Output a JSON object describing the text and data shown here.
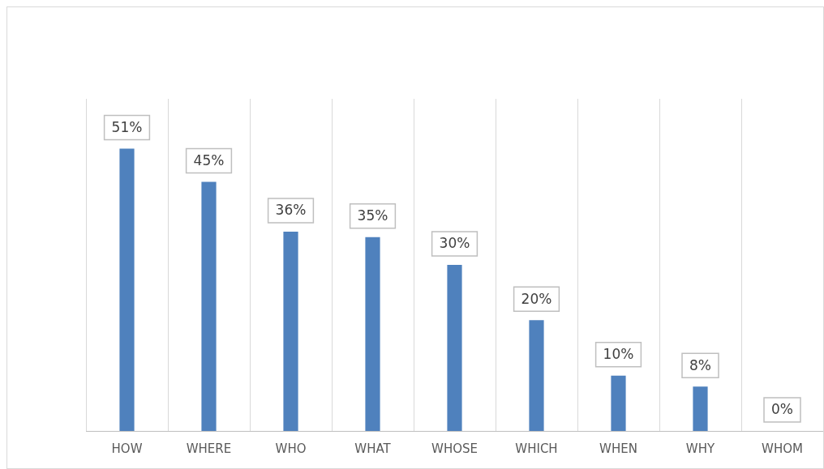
{
  "chart_data": {
    "type": "bar",
    "categories": [
      "HOW",
      "WHERE",
      "WHO",
      "WHAT",
      "WHOSE",
      "WHICH",
      "WHEN",
      "WHY",
      "WHOM"
    ],
    "values": [
      51,
      45,
      36,
      35,
      30,
      20,
      10,
      8,
      0
    ],
    "value_labels": [
      "51%",
      "45%",
      "36%",
      "35%",
      "30%",
      "20%",
      "10%",
      "8%",
      "0%"
    ],
    "color": "#4f81bd",
    "grid": "x",
    "legend": false
  }
}
